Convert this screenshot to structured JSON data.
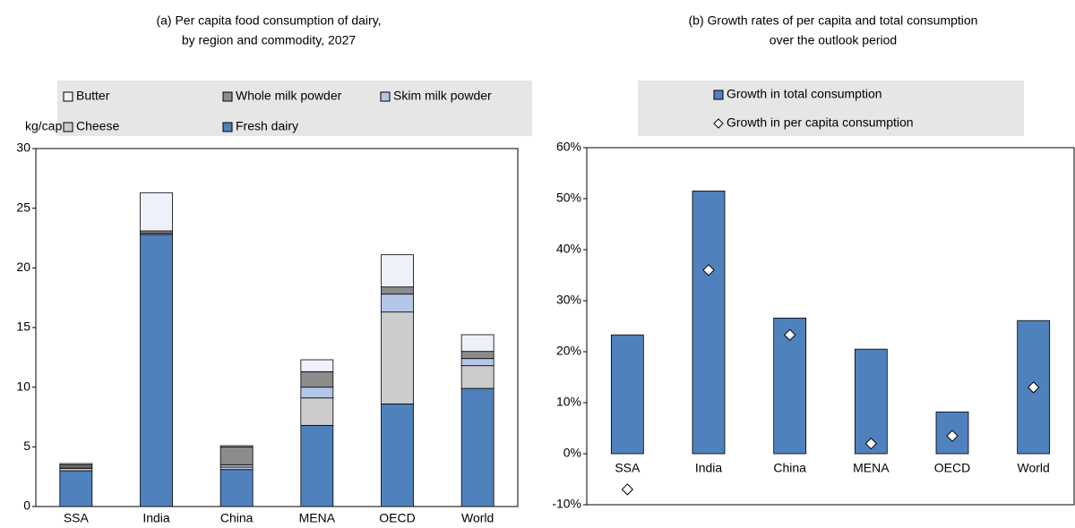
{
  "chart_data": [
    {
      "type": "stacked_bar",
      "title": "(a) Per capita food consumption of dairy,",
      "subtitle": "by region and commodity, 2027",
      "y_label": "kg/cap",
      "categories": [
        "SSA",
        "India",
        "China",
        "MENA",
        "OECD",
        "World"
      ],
      "series": [
        {
          "name": "Fresh dairy",
          "color": "#4f81bd",
          "values": [
            3.0,
            22.8,
            3.1,
            6.8,
            8.6,
            9.9
          ]
        },
        {
          "name": "Cheese",
          "color": "#cccccc",
          "values": [
            0.2,
            0.0,
            0.2,
            2.3,
            7.7,
            1.9
          ]
        },
        {
          "name": "Skim milk powder",
          "color": "#b3c6e7",
          "values": [
            0.1,
            0.1,
            0.2,
            0.9,
            1.5,
            0.6
          ]
        },
        {
          "name": "Whole milk powder",
          "color": "#8c8c8c",
          "values": [
            0.2,
            0.2,
            1.5,
            1.3,
            0.6,
            0.6
          ]
        },
        {
          "name": "Butter",
          "color": "#eef1f9",
          "values": [
            0.1,
            3.2,
            0.1,
            1.0,
            2.7,
            1.4
          ]
        }
      ],
      "ylim": [
        0,
        30
      ],
      "yticks": [
        0,
        5,
        10,
        15,
        20,
        25,
        30
      ],
      "grid": false
    },
    {
      "type": "bar_marker",
      "title": "(b) Growth rates of per capita and total consumption",
      "subtitle": "over the outlook period",
      "categories": [
        "SSA",
        "India",
        "China",
        "MENA",
        "OECD",
        "World"
      ],
      "series": [
        {
          "name": "Growth in total consumption",
          "color": "#4f81bd",
          "values": [
            23.3,
            51.5,
            26.6,
            20.5,
            8.2,
            26.1
          ]
        },
        {
          "name": "Growth in per capita consumption",
          "color": "#ffffff",
          "values": [
            -7,
            36,
            23.3,
            2,
            3.5,
            13
          ]
        }
      ],
      "ylim": [
        -10,
        60
      ],
      "yticks": [
        {
          "value": -10,
          "label": "-10%"
        },
        {
          "value": 0,
          "label": "0%"
        },
        {
          "value": 10,
          "label": "10%"
        },
        {
          "value": 20,
          "label": "20%"
        },
        {
          "value": 30,
          "label": "30%"
        },
        {
          "value": 40,
          "label": "40%"
        },
        {
          "value": 50,
          "label": "50%"
        },
        {
          "value": 60,
          "label": "60%"
        }
      ],
      "grid": false
    }
  ]
}
